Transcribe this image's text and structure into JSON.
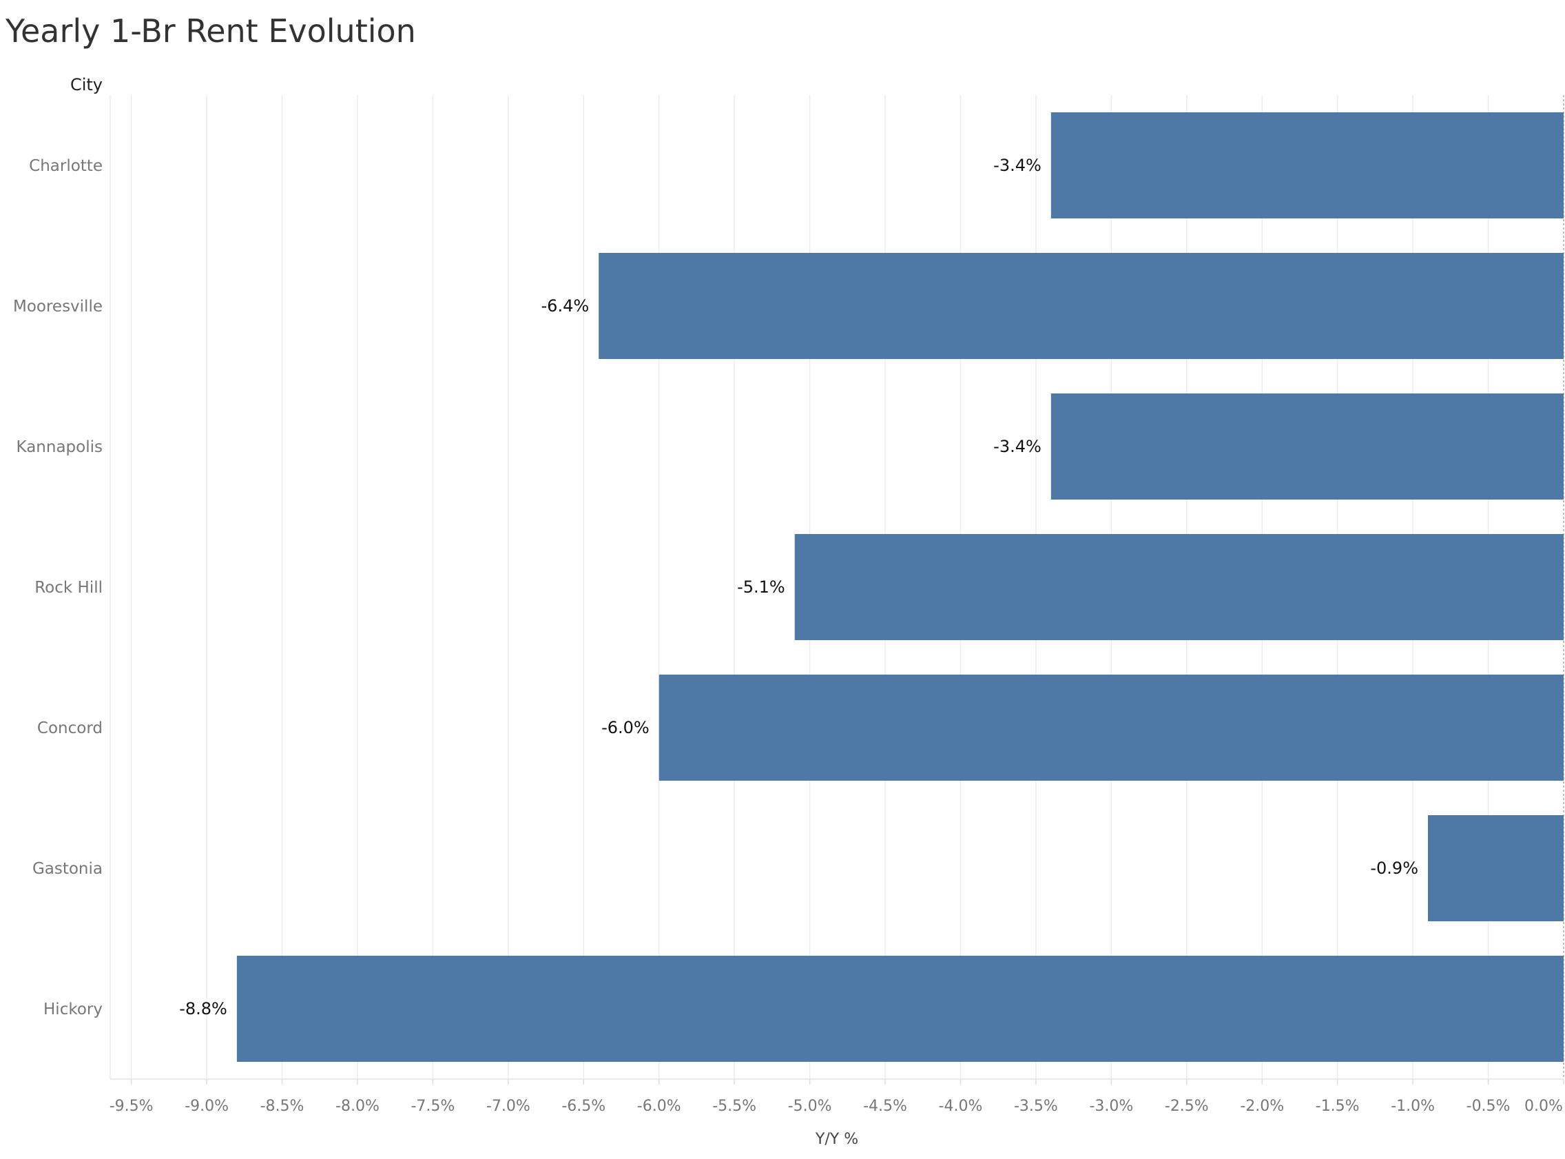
{
  "chart_data": {
    "type": "bar",
    "orientation": "horizontal",
    "title": "Yearly 1-Br Rent Evolution",
    "ylabel": "City",
    "xlabel": "Y/Y %",
    "categories": [
      "Charlotte",
      "Mooresville",
      "Kannapolis",
      "Rock Hill",
      "Concord",
      "Gastonia",
      "Hickory"
    ],
    "values": [
      -3.4,
      -6.4,
      -3.4,
      -5.1,
      -6.0,
      -0.9,
      -8.8
    ],
    "data_labels": [
      "-3.4%",
      "-6.4%",
      "-3.4%",
      "-5.1%",
      "-6.0%",
      "-0.9%",
      "-8.8%"
    ],
    "xlim": [
      -9.64,
      0
    ],
    "ticks": [
      -9.5,
      -9.0,
      -8.5,
      -8.0,
      -7.5,
      -7.0,
      -6.5,
      -6.0,
      -5.5,
      -5.0,
      -4.5,
      -4.0,
      -3.5,
      -3.0,
      -2.5,
      -2.0,
      -1.5,
      -1.0,
      -0.5,
      0.0
    ],
    "tick_labels": [
      "-9.5%",
      "-9.0%",
      "-8.5%",
      "-8.0%",
      "-7.5%",
      "-7.0%",
      "-6.5%",
      "-6.0%",
      "-5.5%",
      "-5.0%",
      "-4.5%",
      "-4.0%",
      "-3.5%",
      "-3.0%",
      "-2.5%",
      "-2.0%",
      "-1.5%",
      "-1.0%",
      "-0.5%",
      "0.0%"
    ],
    "grid": true,
    "bar_color": "#4e79a7"
  }
}
